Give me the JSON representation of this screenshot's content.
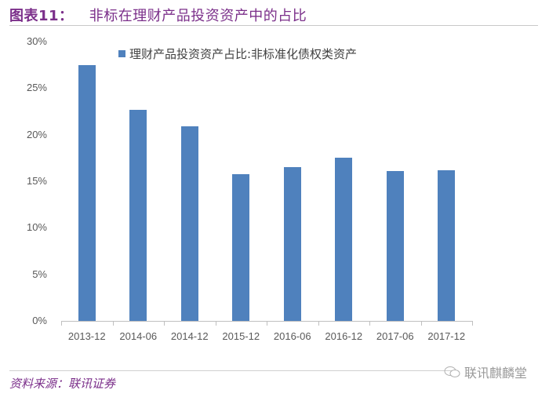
{
  "header": {
    "figure_label": "图表11：",
    "title": "非标在理财产品投资资产中的占比"
  },
  "footer": {
    "source": "资料来源：联讯证券",
    "watermark": "联讯麒麟堂",
    "watermark_icon": "wechat-icon"
  },
  "colors": {
    "bar": "#4f81bd",
    "title": "#7b2f8a",
    "axis_text": "#595959"
  },
  "chart_data": {
    "type": "bar",
    "title": "非标在理财产品投资资产中的占比",
    "categories": [
      "2013-12",
      "2014-06",
      "2014-12",
      "2015-12",
      "2016-06",
      "2016-12",
      "2017-06",
      "2017-12"
    ],
    "series": [
      {
        "name": "理财产品投资资产占比:非标准化债权类资产",
        "values": [
          27.5,
          22.7,
          20.9,
          15.8,
          16.5,
          17.5,
          16.1,
          16.2
        ]
      }
    ],
    "xlabel": "",
    "ylabel": "",
    "ylim": [
      0,
      30
    ],
    "yticks": [
      "0%",
      "5%",
      "10%",
      "15%",
      "20%",
      "25%",
      "30%"
    ],
    "grid": false,
    "legend_position": "top-center",
    "unit": "%"
  }
}
